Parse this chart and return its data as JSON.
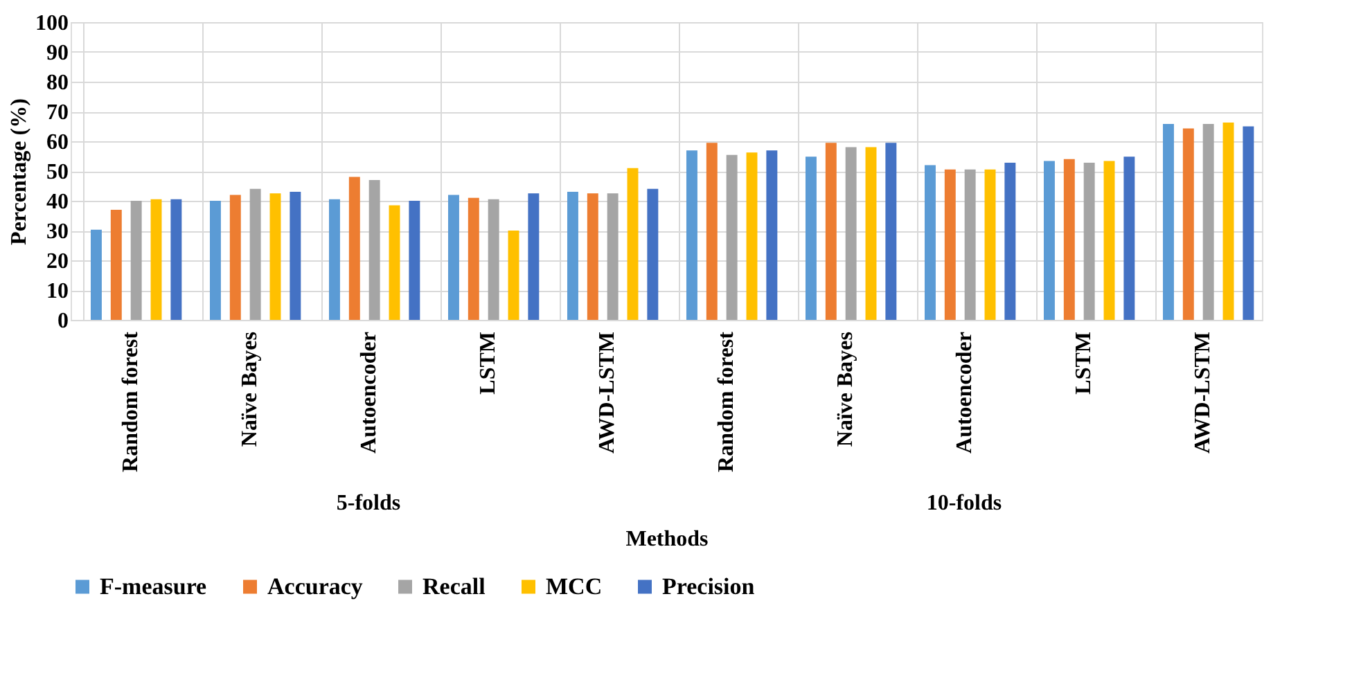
{
  "chart_data": {
    "type": "bar",
    "xlabel": "Methods",
    "ylabel": "Percentage (%)",
    "categories": [
      "Random forest",
      "Naïve Bayes",
      "Autoencoder",
      "LSTM",
      "AWD-LSTM",
      "Random forest",
      "Naïve Bayes",
      "Autoencoder",
      "LSTM",
      "AWD-LSTM"
    ],
    "series": [
      {
        "name": "F-measure",
        "color": "#5b9bd5",
        "values": [
          30.3,
          40,
          40.5,
          42,
          43,
          56.9,
          54.8,
          52,
          53.4,
          65.8
        ]
      },
      {
        "name": "Accuracy",
        "color": "#ed7d31",
        "values": [
          37,
          42,
          48,
          41,
          42.5,
          59.5,
          59.5,
          50.5,
          54,
          64.3
        ]
      },
      {
        "name": "Recall",
        "color": "#a5a5a5",
        "values": [
          40,
          44,
          47,
          40.5,
          42.5,
          55.4,
          58,
          50.5,
          52.8,
          65.8
        ]
      },
      {
        "name": "MCC",
        "color": "#ffc000",
        "values": [
          40.5,
          42.5,
          38.5,
          30,
          51,
          56.2,
          58,
          50.5,
          53.4,
          66.3
        ]
      },
      {
        "name": "Precision",
        "color": "#4472c4",
        "values": [
          40.5,
          43,
          40,
          42.5,
          44,
          56.9,
          59.5,
          52.8,
          54.8,
          65
        ]
      }
    ],
    "annotations": [
      "5-folds",
      "10-folds"
    ],
    "ylim": [
      0,
      100
    ],
    "yticks": [
      0,
      10,
      20,
      30,
      40,
      50,
      60,
      70,
      80,
      90,
      100
    ],
    "grid": true,
    "legend": "bottom"
  }
}
